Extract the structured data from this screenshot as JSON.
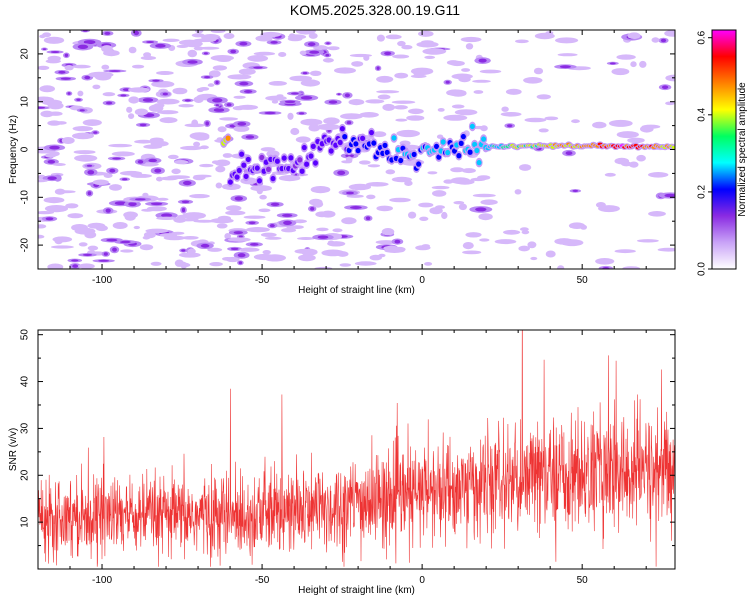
{
  "title": "KOM5.2025.328.00.19.G11",
  "chart_data": [
    {
      "type": "heatmap",
      "title": "KOM5.2025.328.00.19.G11",
      "xlabel": "Height of straight line (km)",
      "ylabel": "Frequency (Hz)",
      "xlim": [
        -120,
        79
      ],
      "ylim": [
        -25,
        25
      ],
      "xticks": [
        -100,
        -50,
        0,
        50
      ],
      "yticks": [
        -20,
        -10,
        0,
        10,
        20
      ],
      "colorbar": {
        "label": "Normalized spectral amplitude",
        "ticks": [
          "0.0",
          "0.2",
          "0.4",
          "0.6"
        ],
        "range": [
          0,
          0.62
        ],
        "colors": [
          "#ffffff",
          "#d8b4f8",
          "#8a2be2",
          "#0000ff",
          "#00ffff",
          "#00ff00",
          "#ffff00",
          "#ff8000",
          "#ff0000",
          "#ff00ff"
        ]
      },
      "ridge": {
        "description_points_x": [
          -60,
          -40,
          -25,
          -15,
          0,
          10,
          20,
          30,
          50,
          65,
          79
        ],
        "description_points_y": [
          -5,
          -3,
          2,
          0,
          -1,
          0,
          0.5,
          0.8,
          0.8,
          0.6,
          0.6
        ],
        "amplitude": [
          0.15,
          0.15,
          0.2,
          0.25,
          0.3,
          0.3,
          0.35,
          0.45,
          0.55,
          0.6,
          0.5
        ]
      },
      "grid": false
    },
    {
      "type": "line",
      "xlabel": "Height of straight line (km)",
      "ylabel": "SNR (v/v)",
      "xlim": [
        -120,
        79
      ],
      "ylim": [
        0,
        51
      ],
      "xticks": [
        -100,
        -50,
        0,
        50
      ],
      "yticks": [
        10,
        20,
        30,
        40,
        50
      ],
      "series_color": "#ee3333",
      "trend": {
        "x": [
          -120,
          -80,
          -40,
          0,
          40,
          79
        ],
        "mean": [
          12,
          11,
          12,
          16,
          20,
          21
        ],
        "spread": [
          7,
          7,
          8,
          9,
          10,
          11
        ]
      },
      "grid": false
    }
  ]
}
